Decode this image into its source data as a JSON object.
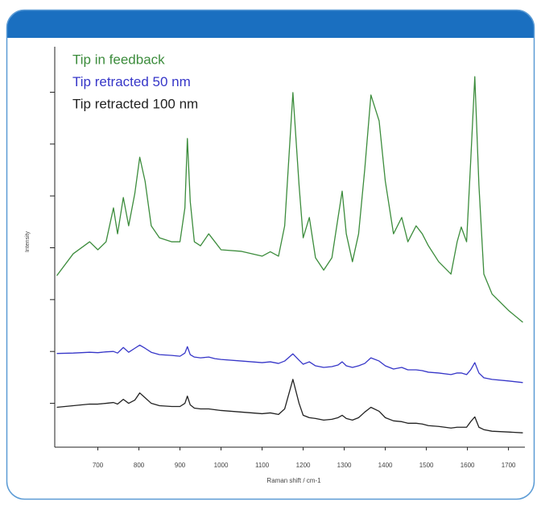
{
  "chart_data": {
    "type": "line",
    "legend_position": "upper left",
    "xlabel": "Raman shift / cm-1",
    "ylabel": "Intensity",
    "x": [
      600,
      640,
      680,
      700,
      720,
      738,
      748,
      762,
      775,
      790,
      802,
      815,
      830,
      850,
      880,
      900,
      912,
      918,
      925,
      935,
      950,
      970,
      985,
      1000,
      1050,
      1100,
      1120,
      1140,
      1155,
      1175,
      1190,
      1200,
      1215,
      1230,
      1250,
      1270,
      1285,
      1295,
      1305,
      1320,
      1335,
      1350,
      1365,
      1385,
      1400,
      1420,
      1440,
      1455,
      1475,
      1490,
      1505,
      1530,
      1560,
      1575,
      1585,
      1598,
      1608,
      1618,
      1628,
      1640,
      1660,
      1700,
      1735
    ],
    "xlim": [
      595,
      1740
    ],
    "xticks": [
      700,
      800,
      900,
      1000,
      1100,
      1200,
      1300,
      1400,
      1500,
      1600,
      1700
    ],
    "ylim": [
      0,
      100
    ],
    "yticks": [
      11,
      24,
      37,
      50,
      63,
      76,
      89
    ],
    "series": [
      {
        "name": "Tip in feedback",
        "color": "#3c8c3c",
        "values": [
          43,
          48.5,
          51.5,
          49.5,
          51.5,
          60,
          53.5,
          62.6,
          55.5,
          63.6,
          72.7,
          66.7,
          55.5,
          52.5,
          51.5,
          51.5,
          60,
          77.4,
          61.6,
          51.5,
          50.5,
          53.5,
          51.5,
          49.5,
          49.1,
          47.9,
          49,
          47.9,
          55.5,
          88.9,
          65.7,
          52.5,
          57.6,
          47.5,
          44.4,
          47.5,
          57.6,
          64.2,
          53.5,
          46.5,
          53.5,
          69.7,
          88.3,
          81.8,
          66.7,
          53.5,
          57.6,
          51.5,
          55.5,
          53.5,
          50.5,
          46.5,
          43.4,
          51.5,
          55.2,
          51.5,
          71.7,
          92.9,
          65.7,
          43.4,
          38.4,
          34.3,
          31.3
        ]
      },
      {
        "name": "Tip retracted 50 nm",
        "color": "#3636c8",
        "values": [
          23.5,
          23.6,
          23.8,
          23.7,
          23.9,
          24,
          23.6,
          25,
          23.8,
          24.8,
          25.6,
          24.8,
          23.8,
          23.2,
          23,
          22.8,
          23.6,
          25.2,
          23.2,
          22.6,
          22.4,
          22.6,
          22.2,
          22,
          21.6,
          21.2,
          21.4,
          21,
          21.6,
          23.4,
          21.8,
          20.8,
          21.4,
          20.4,
          20,
          20.2,
          20.6,
          21.4,
          20.4,
          20,
          20.4,
          21,
          22.4,
          21.6,
          20.4,
          19.6,
          20,
          19.4,
          19.4,
          19.2,
          18.8,
          18.6,
          18.2,
          18.6,
          18.6,
          18.2,
          19.4,
          21.2,
          18.6,
          17.4,
          17,
          16.6,
          16.2
        ]
      },
      {
        "name": "Tip retracted 100 nm",
        "color": "#222222",
        "values": [
          10,
          10.4,
          10.8,
          10.8,
          11,
          11.2,
          10.8,
          12,
          11,
          11.8,
          13.6,
          12.4,
          11,
          10.4,
          10.2,
          10.2,
          11,
          12.8,
          10.6,
          9.8,
          9.6,
          9.6,
          9.4,
          9.2,
          8.8,
          8.4,
          8.6,
          8.2,
          9.6,
          17,
          11,
          8,
          7.4,
          7.2,
          6.8,
          7,
          7.4,
          8,
          7.2,
          6.8,
          7.4,
          8.8,
          10,
          9,
          7.4,
          6.6,
          6.4,
          6,
          6,
          5.8,
          5.4,
          5.2,
          4.8,
          5,
          5,
          5,
          6.4,
          7.6,
          5,
          4.4,
          4,
          3.8,
          3.6
        ]
      }
    ]
  }
}
